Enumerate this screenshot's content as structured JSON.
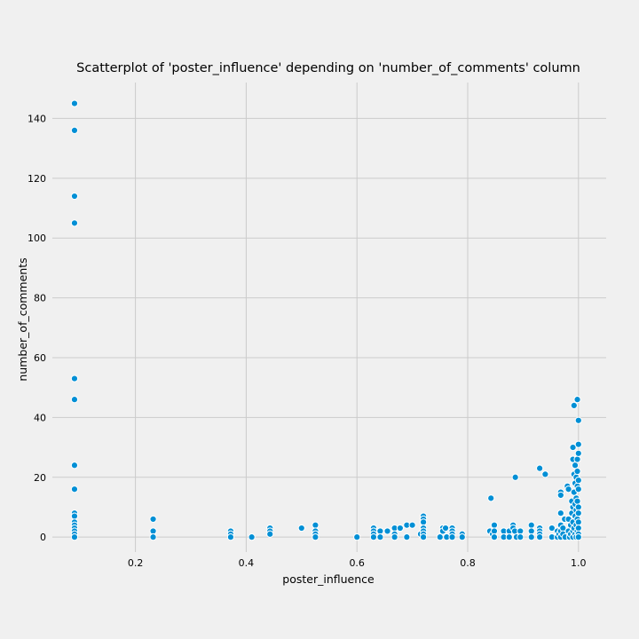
{
  "chart_data": {
    "type": "scatter",
    "title": "Scatterplot of 'poster_influence' depending on 'number_of_comments' column",
    "xlabel": "poster_influence",
    "ylabel": "number_of_comments",
    "xlim": [
      0.05,
      1.05
    ],
    "ylim": [
      -5,
      152
    ],
    "xticks": [
      0.2,
      0.4,
      0.6,
      0.8,
      1.0
    ],
    "xtick_labels": [
      "0.2",
      "0.4",
      "0.6",
      "0.8",
      "1.0"
    ],
    "yticks": [
      0,
      20,
      40,
      60,
      80,
      100,
      120,
      140
    ],
    "ytick_labels": [
      "0",
      "20",
      "40",
      "60",
      "80",
      "100",
      "120",
      "140"
    ],
    "grid": true,
    "colors": {
      "marker": "#008fd5",
      "background": "#f0f0f0",
      "grid": "#cbcbcb"
    },
    "points": [
      [
        0.09,
        145
      ],
      [
        0.09,
        136
      ],
      [
        0.09,
        114
      ],
      [
        0.09,
        105
      ],
      [
        0.09,
        53
      ],
      [
        0.09,
        46
      ],
      [
        0.09,
        24
      ],
      [
        0.09,
        16
      ],
      [
        0.09,
        8
      ],
      [
        0.09,
        7
      ],
      [
        0.09,
        5
      ],
      [
        0.09,
        4
      ],
      [
        0.09,
        3
      ],
      [
        0.09,
        2
      ],
      [
        0.09,
        1
      ],
      [
        0.09,
        0
      ],
      [
        0.232,
        6
      ],
      [
        0.232,
        2
      ],
      [
        0.232,
        0
      ],
      [
        0.372,
        2
      ],
      [
        0.372,
        1
      ],
      [
        0.372,
        0
      ],
      [
        0.41,
        0
      ],
      [
        0.443,
        3
      ],
      [
        0.443,
        2
      ],
      [
        0.443,
        1
      ],
      [
        0.5,
        3
      ],
      [
        0.525,
        4
      ],
      [
        0.525,
        2
      ],
      [
        0.525,
        1
      ],
      [
        0.525,
        0
      ],
      [
        0.6,
        0
      ],
      [
        0.63,
        3
      ],
      [
        0.63,
        2
      ],
      [
        0.63,
        1
      ],
      [
        0.63,
        0
      ],
      [
        0.642,
        2
      ],
      [
        0.642,
        0
      ],
      [
        0.655,
        2
      ],
      [
        0.668,
        3
      ],
      [
        0.668,
        1
      ],
      [
        0.668,
        0
      ],
      [
        0.678,
        3
      ],
      [
        0.69,
        4
      ],
      [
        0.69,
        0
      ],
      [
        0.7,
        4
      ],
      [
        0.715,
        1
      ],
      [
        0.72,
        7
      ],
      [
        0.72,
        6
      ],
      [
        0.72,
        5
      ],
      [
        0.72,
        3
      ],
      [
        0.72,
        2
      ],
      [
        0.72,
        1
      ],
      [
        0.72,
        0
      ],
      [
        0.75,
        0
      ],
      [
        0.755,
        3
      ],
      [
        0.755,
        2
      ],
      [
        0.76,
        3
      ],
      [
        0.762,
        0
      ],
      [
        0.772,
        3
      ],
      [
        0.772,
        2
      ],
      [
        0.772,
        1
      ],
      [
        0.772,
        0
      ],
      [
        0.79,
        1
      ],
      [
        0.79,
        0
      ],
      [
        0.84,
        2
      ],
      [
        0.842,
        13
      ],
      [
        0.845,
        1
      ],
      [
        0.848,
        4
      ],
      [
        0.848,
        2
      ],
      [
        0.848,
        0
      ],
      [
        0.865,
        2
      ],
      [
        0.865,
        0
      ],
      [
        0.875,
        2
      ],
      [
        0.875,
        0
      ],
      [
        0.882,
        4
      ],
      [
        0.882,
        3
      ],
      [
        0.885,
        2
      ],
      [
        0.886,
        20
      ],
      [
        0.888,
        0
      ],
      [
        0.895,
        2
      ],
      [
        0.895,
        0
      ],
      [
        0.915,
        4
      ],
      [
        0.915,
        2
      ],
      [
        0.915,
        0
      ],
      [
        0.93,
        23
      ],
      [
        0.93,
        3
      ],
      [
        0.93,
        2
      ],
      [
        0.93,
        1
      ],
      [
        0.93,
        0
      ],
      [
        0.94,
        21
      ],
      [
        0.952,
        3
      ],
      [
        0.952,
        0
      ],
      [
        0.962,
        2
      ],
      [
        0.962,
        0
      ],
      [
        0.965,
        1
      ],
      [
        0.968,
        15
      ],
      [
        0.968,
        14
      ],
      [
        0.968,
        8
      ],
      [
        0.968,
        4
      ],
      [
        0.968,
        2
      ],
      [
        0.968,
        0
      ],
      [
        0.972,
        3
      ],
      [
        0.972,
        1
      ],
      [
        0.975,
        6
      ],
      [
        0.976,
        0
      ],
      [
        0.98,
        17
      ],
      [
        0.982,
        16
      ],
      [
        0.982,
        6
      ],
      [
        0.982,
        2
      ],
      [
        0.984,
        0
      ],
      [
        0.986,
        4
      ],
      [
        0.986,
        1
      ],
      [
        0.988,
        12
      ],
      [
        0.988,
        8
      ],
      [
        0.99,
        30
      ],
      [
        0.99,
        26
      ],
      [
        0.99,
        10
      ],
      [
        0.99,
        5
      ],
      [
        0.99,
        2
      ],
      [
        0.99,
        0
      ],
      [
        0.992,
        44
      ],
      [
        0.992,
        21
      ],
      [
        0.992,
        15
      ],
      [
        0.992,
        3
      ],
      [
        0.994,
        24
      ],
      [
        0.994,
        18
      ],
      [
        0.994,
        11
      ],
      [
        0.994,
        7
      ],
      [
        0.994,
        1
      ],
      [
        0.996,
        20
      ],
      [
        0.996,
        13
      ],
      [
        0.996,
        9
      ],
      [
        0.996,
        4
      ],
      [
        0.996,
        0
      ],
      [
        0.998,
        46
      ],
      [
        0.998,
        26
      ],
      [
        0.998,
        22
      ],
      [
        0.998,
        17
      ],
      [
        0.998,
        12
      ],
      [
        0.998,
        6
      ],
      [
        0.998,
        2
      ],
      [
        1.0,
        39
      ],
      [
        1.0,
        31
      ],
      [
        1.0,
        28
      ],
      [
        1.0,
        19
      ],
      [
        1.0,
        16
      ],
      [
        1.0,
        10
      ],
      [
        1.0,
        8
      ],
      [
        1.0,
        5
      ],
      [
        1.0,
        3
      ],
      [
        1.0,
        1
      ],
      [
        1.0,
        0
      ]
    ]
  }
}
